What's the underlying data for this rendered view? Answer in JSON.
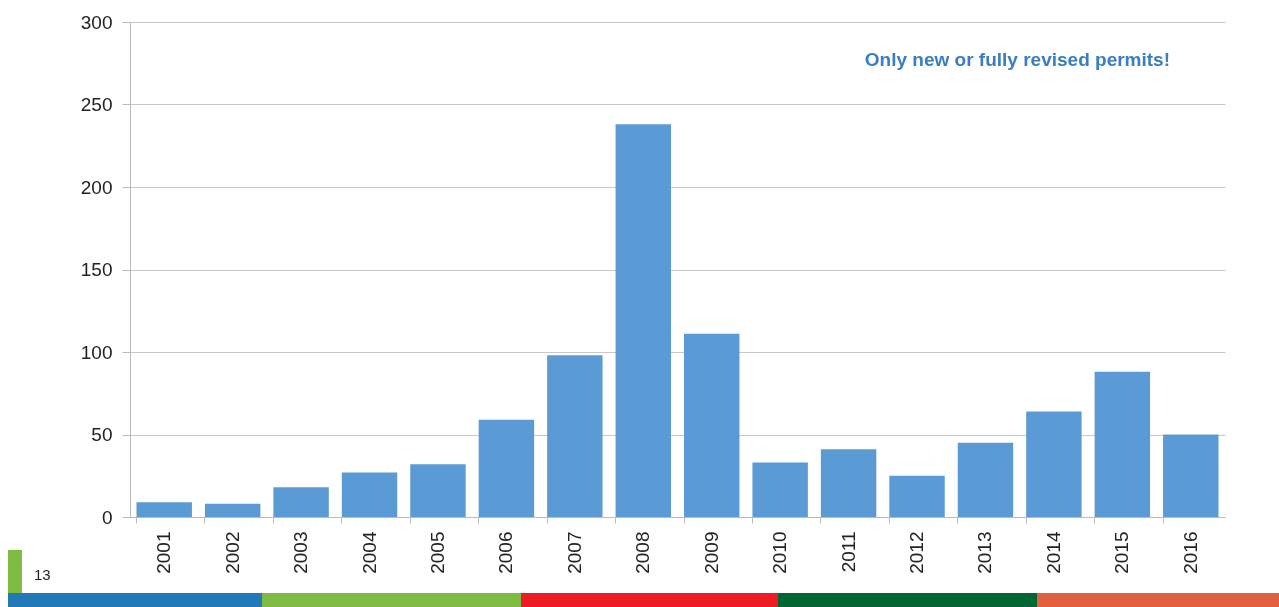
{
  "chart_data": {
    "type": "bar",
    "categories": [
      "2001",
      "2002",
      "2003",
      "2004",
      "2005",
      "2006",
      "2007",
      "2008",
      "2009",
      "2010",
      "2011",
      "2012",
      "2013",
      "2014",
      "2015",
      "2016"
    ],
    "values": [
      9,
      8,
      18,
      27,
      32,
      59,
      98,
      238,
      111,
      33,
      41,
      25,
      45,
      64,
      88,
      50
    ],
    "color": "#5b9bd5",
    "ylim": [
      0,
      300
    ],
    "yticks": [
      0,
      50,
      100,
      150,
      200,
      250,
      300
    ],
    "grid": "y",
    "annotations": [
      "Only new or fully revised permits!",
      "13"
    ]
  }
}
